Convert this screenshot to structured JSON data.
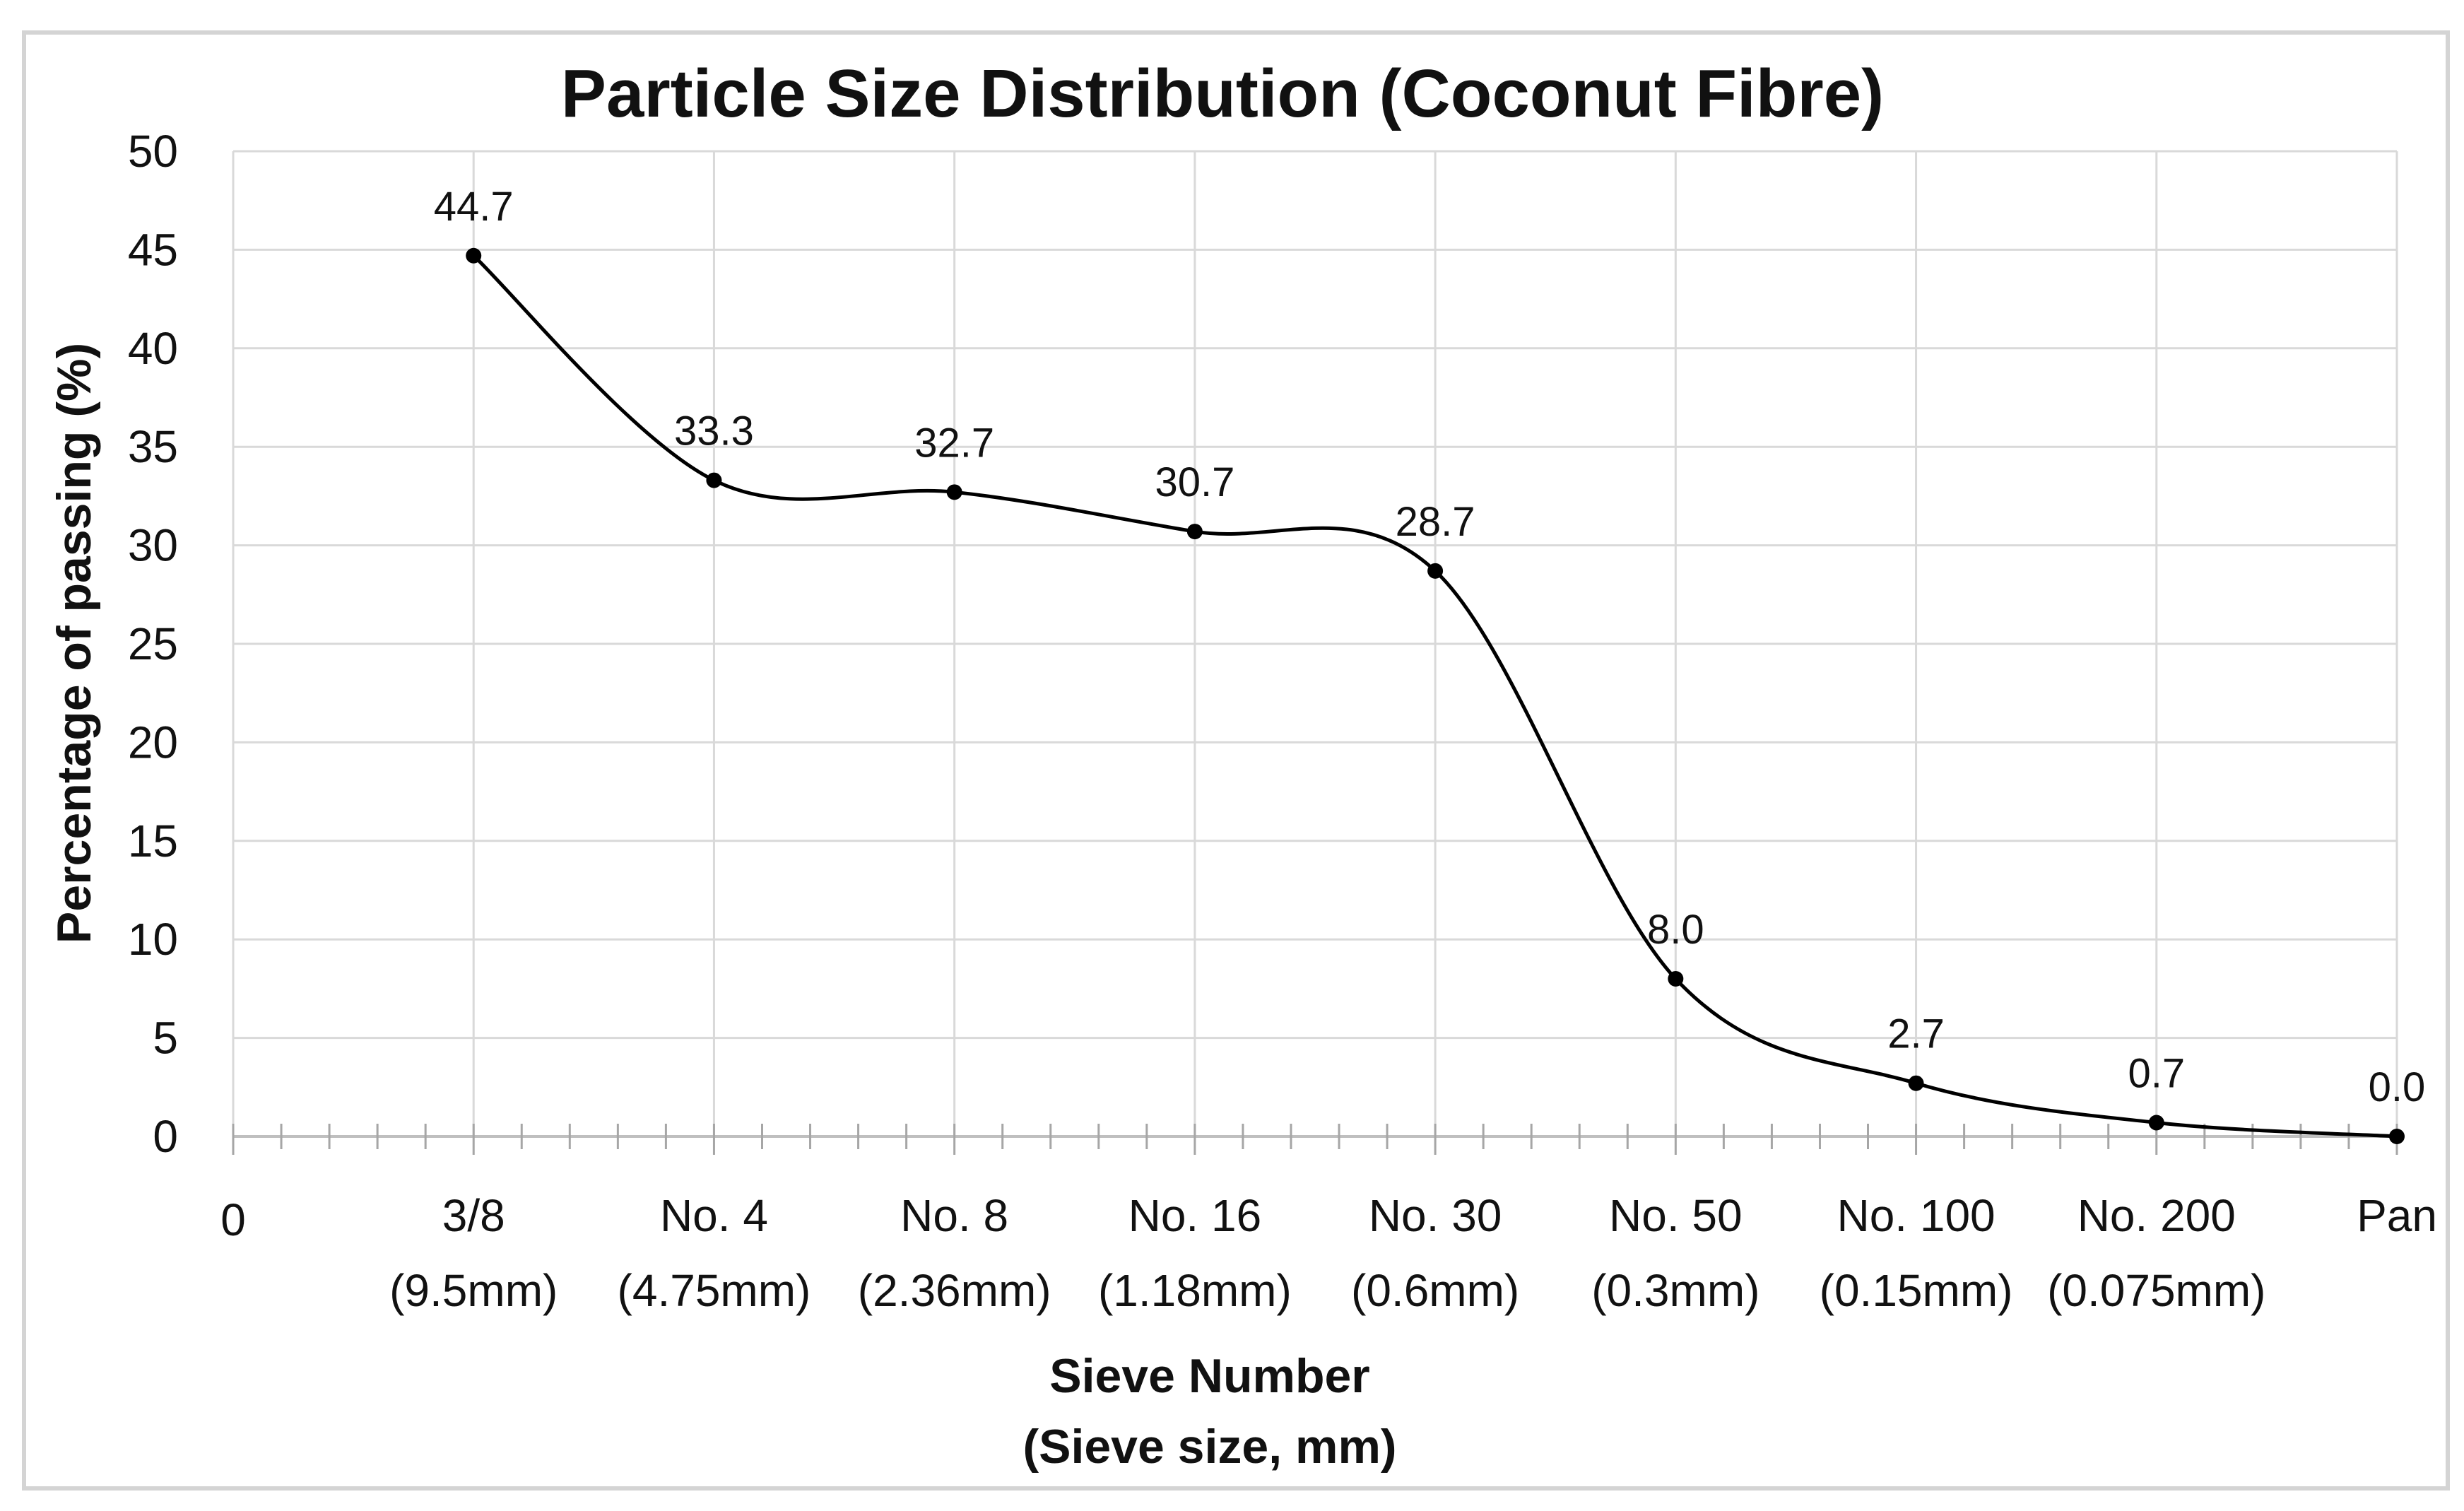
{
  "chart_data": {
    "type": "line",
    "title": "Particle Size Distribution (Coconut Fibre)",
    "ylabel": "Percentage of passing (%)",
    "xlabel": [
      "Sieve Number",
      "(Sieve size, mm)"
    ],
    "ylim": [
      0,
      50
    ],
    "yticks": [
      "0",
      "5",
      "10",
      "15",
      "20",
      "25",
      "30",
      "35",
      "40",
      "45",
      "50"
    ],
    "grid": true,
    "x_origin_label": "0",
    "categories": [
      {
        "name": "3/8",
        "size": "(9.5mm)"
      },
      {
        "name": "No. 4",
        "size": "(4.75mm)"
      },
      {
        "name": "No. 8",
        "size": "(2.36mm)"
      },
      {
        "name": "No. 16",
        "size": "(1.18mm)"
      },
      {
        "name": "No. 30",
        "size": "(0.6mm)"
      },
      {
        "name": "No. 50",
        "size": "(0.3mm)"
      },
      {
        "name": "No. 100",
        "size": "(0.15mm)"
      },
      {
        "name": "No. 200",
        "size": "(0.075mm)"
      },
      {
        "name": "Pan",
        "size": ""
      }
    ],
    "series": [
      {
        "name": "Percentage of passing",
        "values": [
          44.7,
          33.3,
          32.7,
          30.7,
          28.7,
          8.0,
          2.7,
          0.7,
          0.0
        ],
        "labels": [
          "44.7",
          "33.3",
          "32.7",
          "30.7",
          "28.7",
          "8.0",
          "2.7",
          "0.7",
          "0.0"
        ],
        "color": "#000000"
      }
    ]
  }
}
